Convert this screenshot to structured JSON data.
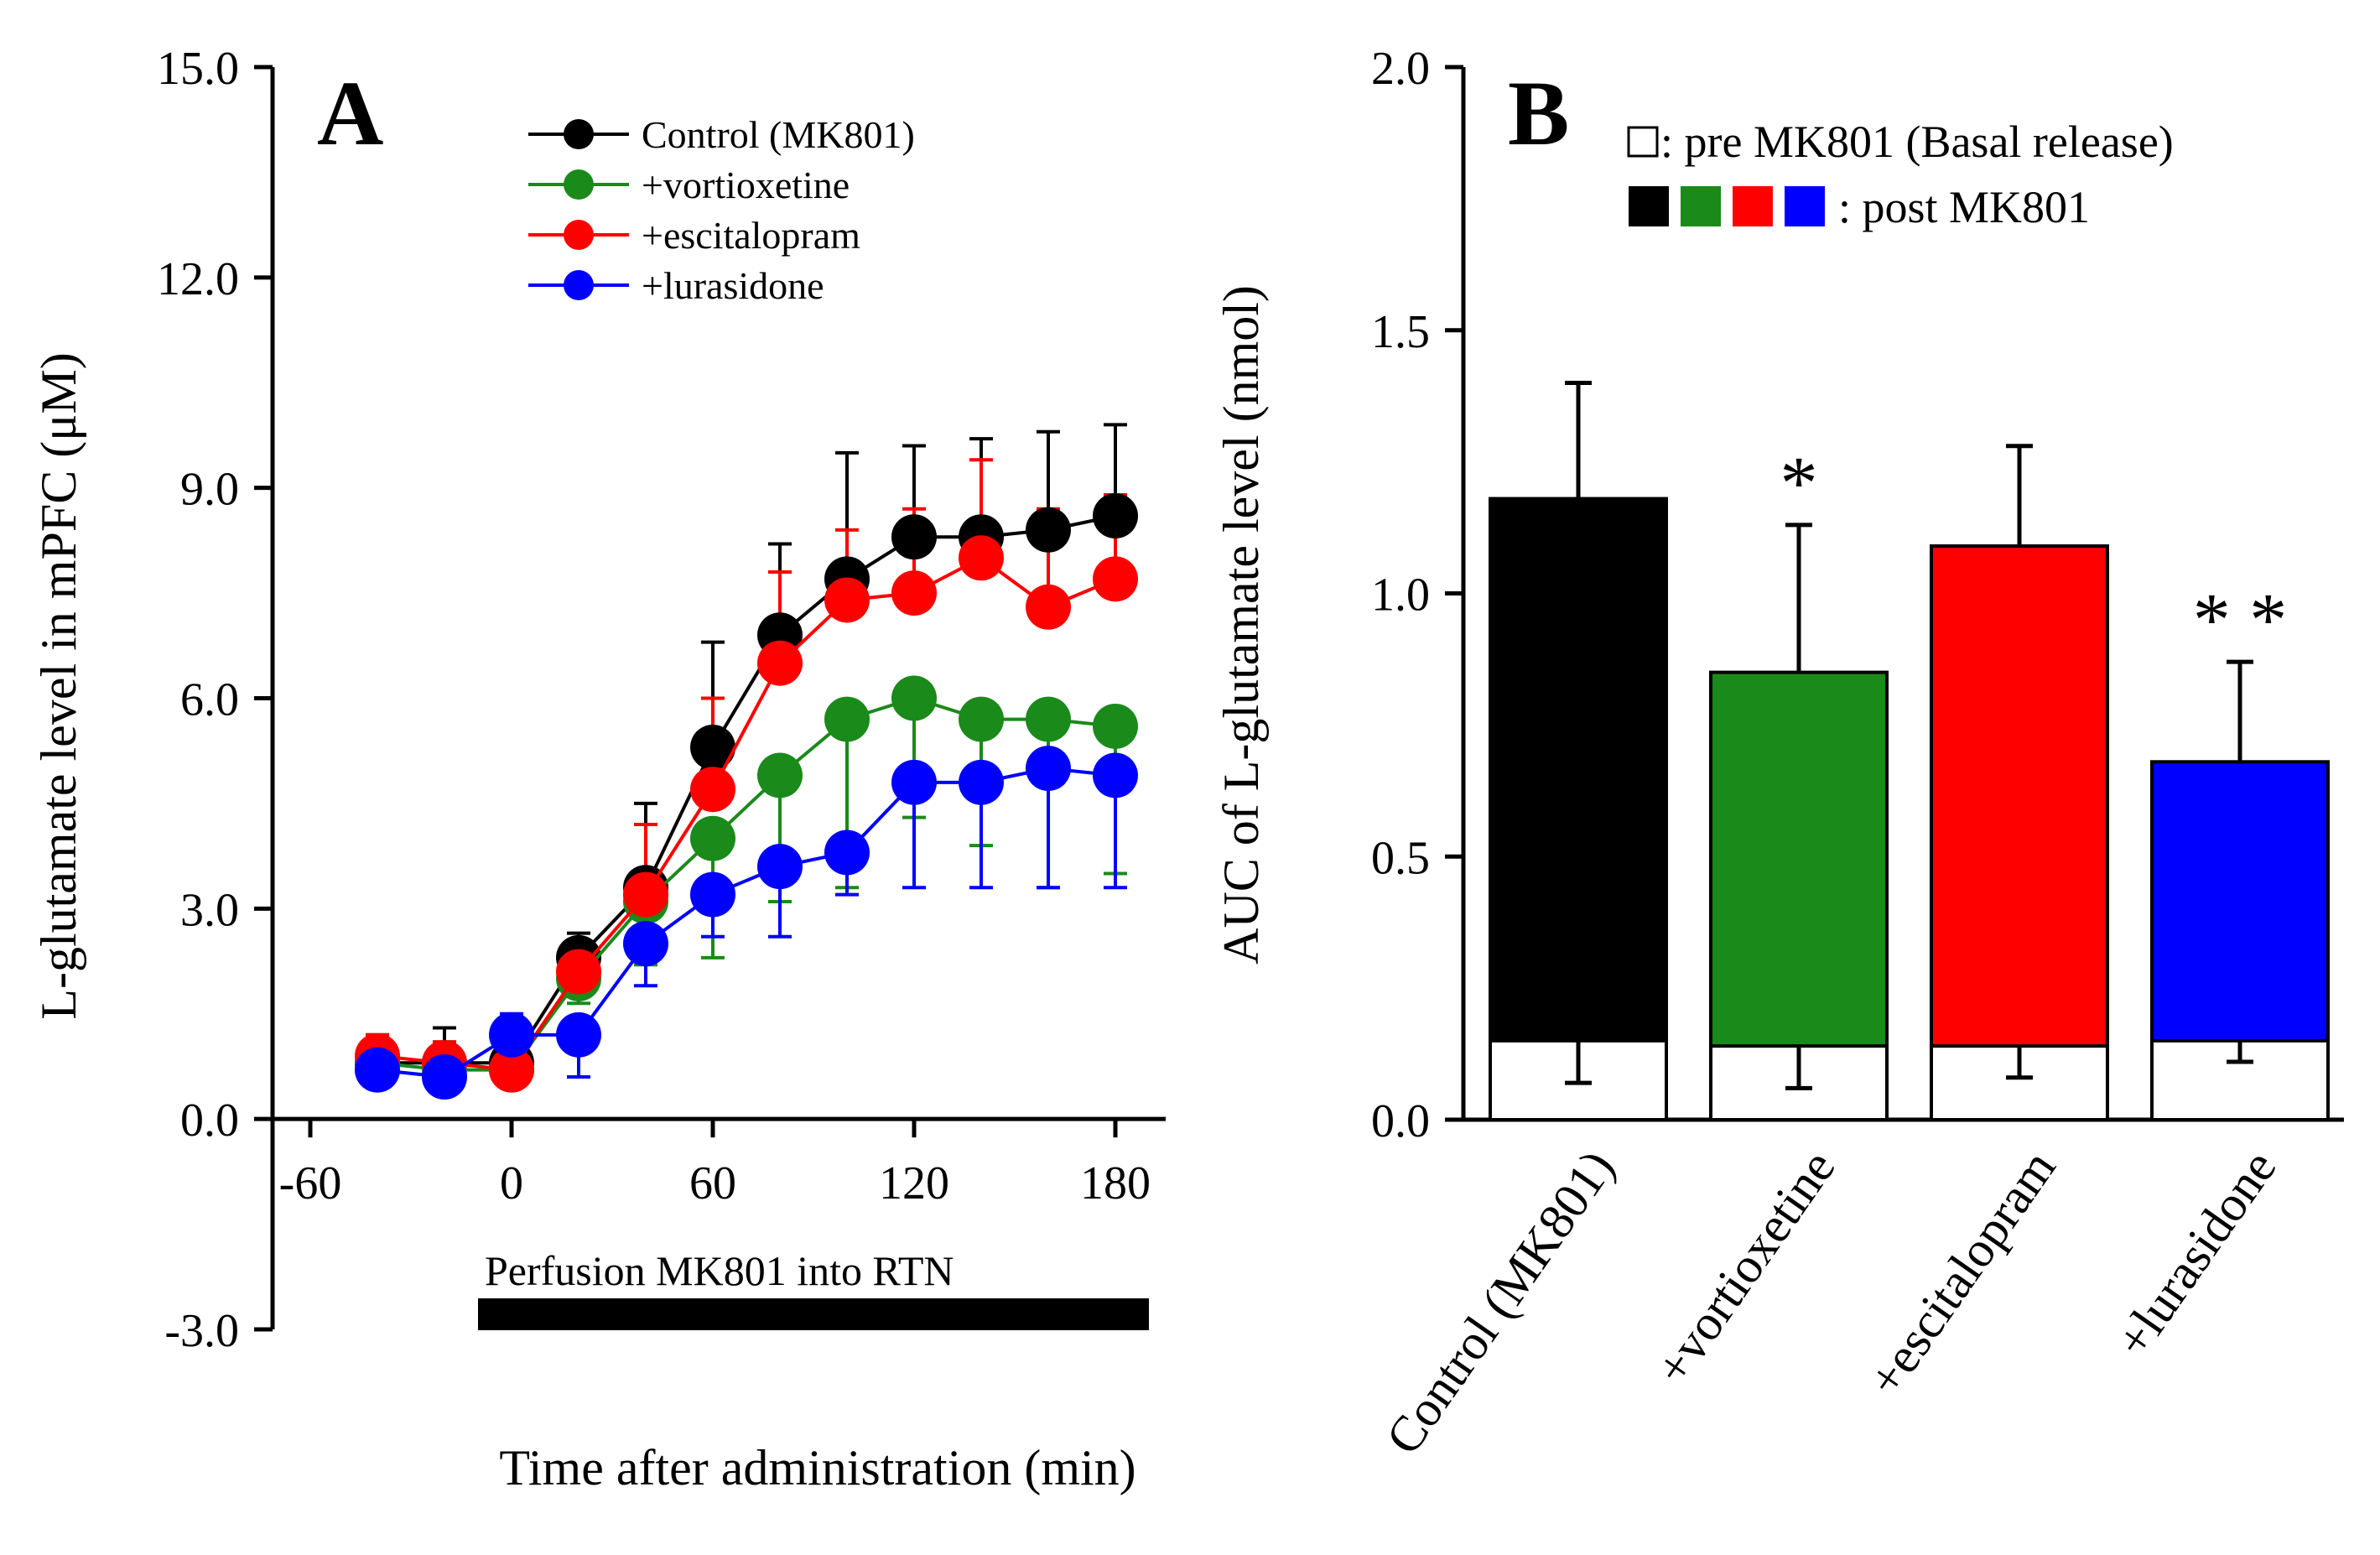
{
  "chart_data": [
    {
      "type": "line",
      "panel": "A",
      "xlabel": "Time after administration (min)",
      "ylabel": "L-glutamate level in mPFC (μM)",
      "xlim": [
        -75,
        195
      ],
      "ylim": [
        -3.0,
        15.0
      ],
      "x_ticks": [
        "-60",
        "0",
        "60",
        "120",
        "180"
      ],
      "y_ticks": [
        "-3.0",
        "0.0",
        "3.0",
        "6.0",
        "9.0",
        "12.0",
        "15.0"
      ],
      "x": [
        -40,
        -20,
        0,
        20,
        40,
        60,
        80,
        100,
        120,
        140,
        160,
        180
      ],
      "series": [
        {
          "name": "Control (MK801)",
          "color": "#000000",
          "values": [
            0.8,
            0.8,
            0.8,
            2.3,
            3.3,
            5.3,
            6.9,
            7.7,
            8.3,
            8.3,
            8.4,
            8.6
          ],
          "errors": [
            0.4,
            0.5,
            0.4,
            0.35,
            1.2,
            1.5,
            1.3,
            1.8,
            1.3,
            1.4,
            1.4,
            1.3
          ]
        },
        {
          "name": "+vortioxetine",
          "color": "#1a8a1a",
          "values": [
            0.8,
            0.7,
            0.7,
            2.0,
            3.1,
            4.0,
            4.9,
            5.7,
            6.0,
            5.7,
            5.7,
            5.6
          ],
          "errors": [
            0.4,
            0.4,
            0.3,
            0.35,
            0.9,
            1.7,
            1.8,
            2.4,
            1.7,
            1.8,
            2.4,
            2.1
          ]
        },
        {
          "name": "+escitalopram",
          "color": "#ff0000",
          "values": [
            0.9,
            0.8,
            0.7,
            2.1,
            3.2,
            4.7,
            6.5,
            7.4,
            7.5,
            8.0,
            7.3,
            7.7
          ],
          "errors": [
            0.3,
            0.3,
            0.3,
            0.4,
            1.0,
            1.3,
            1.3,
            1.0,
            1.2,
            1.4,
            1.4,
            1.2
          ]
        },
        {
          "name": "+lurasidone",
          "color": "#0000ff",
          "values": [
            0.7,
            0.6,
            1.2,
            1.2,
            2.5,
            3.2,
            3.6,
            3.8,
            4.8,
            4.8,
            5.0,
            4.9
          ],
          "errors": [
            0.3,
            0.3,
            0.3,
            0.6,
            0.6,
            0.6,
            1.0,
            0.6,
            1.5,
            1.5,
            1.7,
            1.6
          ]
        }
      ],
      "annotation": "Perfusion MK801 into RTN",
      "annotation_range": [
        -10,
        190
      ]
    },
    {
      "type": "bar",
      "panel": "B",
      "ylabel": "AUC of L-glutamate level (nmol)",
      "ylim": [
        0.0,
        2.0
      ],
      "y_ticks": [
        "0.0",
        "0.5",
        "1.0",
        "1.5",
        "2.0"
      ],
      "categories": [
        "Control (MK801)",
        "+vortioxetine",
        "+escitalopram",
        "+lurasidone"
      ],
      "colors": [
        "#000000",
        "#1a8a1a",
        "#ff0000",
        "#0000ff"
      ],
      "series": [
        {
          "name": "pre MK801 (Basal release)",
          "values": [
            0.15,
            0.14,
            0.14,
            0.15
          ],
          "errors": [
            0.08,
            0.08,
            0.06,
            0.04
          ]
        },
        {
          "name": "post MK801",
          "values": [
            1.18,
            0.85,
            1.09,
            0.68
          ],
          "errors": [
            0.22,
            0.28,
            0.19,
            0.19
          ]
        }
      ],
      "significance": [
        "",
        "*",
        "",
        "**"
      ],
      "legend": {
        "pre_label": ": pre MK801 (Basal release)",
        "post_label": ": post MK801"
      }
    }
  ]
}
